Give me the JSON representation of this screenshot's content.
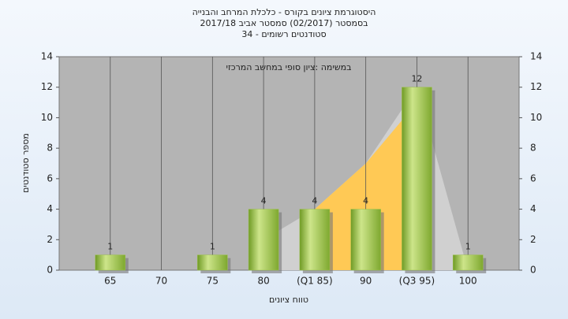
{
  "chart_data": {
    "type": "bar",
    "title": [
      "היסטוגרמת ציונים בקורס - כלכלת המרחב והבנייה",
      "בסמסטר  (02/2017)  סמסטר אביב 2017/18",
      "סטודנטים רשומים - 34"
    ],
    "annotation": "במשימה :ציון סופי במחשב המרכזי",
    "x_label": "טווח ציונים",
    "y_label": "מספר סטודנטים",
    "categories": [
      "65",
      "70",
      "75",
      "80",
      "(Q1 85)",
      "90",
      "(Q3 95)",
      "100"
    ],
    "values": [
      1,
      0,
      1,
      4,
      4,
      4,
      12,
      1
    ],
    "color": "#9cc24a",
    "areas": [
      {
        "color": "#d0d0d0",
        "values": [
          null,
          null,
          null,
          2,
          4,
          7,
          12,
          0
        ]
      },
      {
        "color": "#ffc955",
        "values": [
          null,
          null,
          null,
          null,
          4,
          7,
          11,
          null
        ]
      }
    ],
    "ylim": [
      0,
      14
    ],
    "yticks": [
      0,
      2,
      4,
      6,
      8,
      10,
      12,
      14
    ],
    "y2lim": [
      0,
      14
    ],
    "y2ticks": [
      0,
      2,
      4,
      6,
      8,
      10,
      12,
      14
    ],
    "grid": true
  }
}
